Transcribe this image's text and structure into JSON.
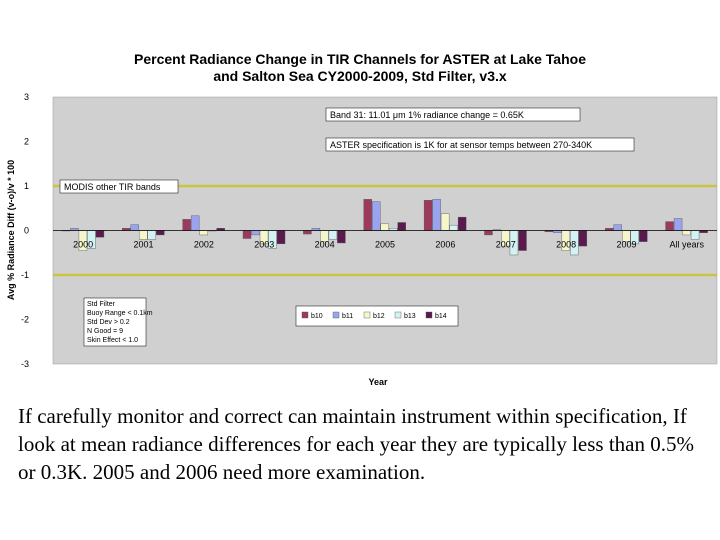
{
  "chart_data": {
    "type": "bar",
    "title_lines": [
      "Percent Radiance Change in TIR Channels for ASTER at Lake Tahoe",
      "and Salton Sea CY2000-2009, Std Filter, v3.x"
    ],
    "xlabel": "Year",
    "ylabel": "Avg % Radiance Diff (v-o)/v * 100",
    "ylim": [
      -3,
      3
    ],
    "yticks": [
      3,
      2,
      1,
      0,
      -1,
      -2,
      -3
    ],
    "grid": false,
    "categories": [
      "2000",
      "2001",
      "2002",
      "2003",
      "2004",
      "2005",
      "2006",
      "2007",
      "2008",
      "2009",
      "All years"
    ],
    "series": [
      {
        "name": "b10",
        "color": "#9b3a5c",
        "values": [
          0.0,
          0.05,
          0.25,
          -0.18,
          -0.08,
          0.7,
          0.68,
          -0.1,
          -0.03,
          0.05,
          0.2
        ]
      },
      {
        "name": "b11",
        "color": "#9aa3ef",
        "values": [
          0.05,
          0.13,
          0.33,
          -0.1,
          0.05,
          0.65,
          0.7,
          0.02,
          -0.05,
          0.13,
          0.27
        ]
      },
      {
        "name": "b12",
        "color": "#f6f6cc",
        "values": [
          -0.45,
          -0.2,
          -0.1,
          -0.3,
          -0.25,
          0.15,
          0.38,
          -0.35,
          -0.45,
          -0.25,
          -0.1
        ]
      },
      {
        "name": "b13",
        "color": "#d2f2f4",
        "values": [
          -0.4,
          -0.2,
          0.0,
          -0.4,
          -0.2,
          0.05,
          0.12,
          -0.55,
          -0.55,
          -0.3,
          -0.2
        ]
      },
      {
        "name": "b14",
        "color": "#5a1a4e",
        "values": [
          -0.15,
          -0.1,
          0.05,
          -0.3,
          -0.28,
          0.18,
          0.3,
          -0.45,
          -0.35,
          -0.25,
          -0.05
        ]
      }
    ],
    "reference_lines": [
      {
        "value": 1,
        "color": "#c9c442"
      },
      {
        "value": -1,
        "color": "#c9c442"
      }
    ],
    "annotations": {
      "band31": "Band 31: 11.01 μm 1% radiance change = 0.65K",
      "aster_spec": "ASTER specification is 1K for at sensor temps between 270-340K",
      "modis": "MODIS other TIR bands",
      "filter_box": [
        "Std Filter",
        "Buoy Range < 0.1km",
        "Std Dev > 0.2",
        "N Good = 9",
        "Skin Effect < 1.0"
      ]
    }
  },
  "caption": "If carefully monitor and correct can maintain instrument within specification, If look at mean radiance differences for each year they are typically less than 0.5% or 0.3K. 2005 and 2006 need more examination."
}
